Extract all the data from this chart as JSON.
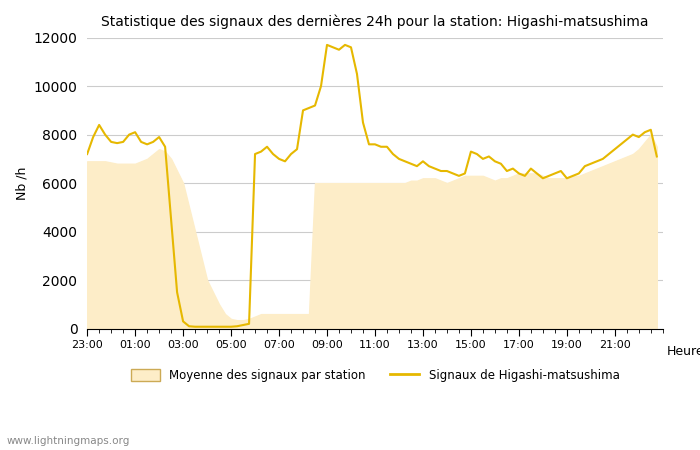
{
  "title": "Statistique des signaux des dernières 24h pour la station: Higashi-matsushima",
  "xlabel": "Heure",
  "ylabel": "Nb /h",
  "watermark": "www.lightningmaps.org",
  "legend_avg": "Moyenne des signaux par station",
  "legend_signal": "Signaux de Higashi-matsushima",
  "ylim": [
    0,
    12000
  ],
  "yticks": [
    0,
    2000,
    4000,
    6000,
    8000,
    10000,
    12000
  ],
  "fill_color": "#fdedc8",
  "line_color": "#e6b800",
  "grid_color": "#cccccc",
  "xtick_labels": [
    "23:00",
    "01:00",
    "03:00",
    "05:00",
    "07:00",
    "09:00",
    "11:00",
    "13:00",
    "15:00",
    "17:00",
    "19:00",
    "21:00"
  ],
  "time_hours": [
    23.0,
    23.25,
    23.5,
    23.75,
    24.0,
    24.25,
    24.5,
    24.75,
    25.0,
    25.25,
    25.5,
    25.75,
    26.0,
    26.25,
    26.5,
    26.75,
    27.0,
    27.25,
    27.5,
    27.75,
    28.0,
    28.25,
    28.5,
    28.75,
    29.0,
    29.25,
    29.5,
    29.75,
    30.0,
    30.25,
    30.5,
    30.75,
    31.0,
    31.25,
    31.5,
    31.75,
    32.0,
    32.25,
    32.5,
    32.75,
    33.0,
    33.25,
    33.5,
    33.75,
    34.0,
    34.25,
    34.5,
    34.75,
    35.0,
    35.25,
    35.5,
    35.75,
    36.0,
    36.25,
    36.5,
    36.75,
    37.0,
    37.25,
    37.5,
    37.75,
    38.0,
    38.25,
    38.5,
    38.75,
    39.0,
    39.25,
    39.5,
    39.75,
    40.0,
    40.25,
    40.5,
    40.75,
    41.0,
    41.25,
    41.5,
    41.75,
    42.0,
    42.25,
    42.5,
    42.75,
    43.0,
    43.25,
    43.5,
    43.75,
    44.0,
    44.25,
    44.5,
    44.75,
    45.0,
    45.25,
    45.5,
    45.75,
    46.0,
    46.25,
    46.5,
    46.75
  ],
  "signal_values": [
    7200,
    7900,
    8400,
    8000,
    7700,
    7650,
    7700,
    8000,
    8100,
    7700,
    7600,
    7700,
    7900,
    7500,
    4500,
    1500,
    300,
    100,
    80,
    80,
    80,
    80,
    80,
    80,
    80,
    100,
    150,
    200,
    7200,
    7300,
    7500,
    7200,
    7000,
    6900,
    7200,
    7400,
    9000,
    9100,
    9200,
    10000,
    11700,
    11600,
    11500,
    11700,
    11600,
    10500,
    8500,
    7600,
    7600,
    7500,
    7500,
    7200,
    7000,
    6900,
    6800,
    6700,
    6900,
    6700,
    6600,
    6500,
    6500,
    6400,
    6300,
    6400,
    7300,
    7200,
    7000,
    7100,
    6900,
    6800,
    6500,
    6600,
    6400,
    6300,
    6600,
    6400,
    6200,
    6300,
    6400,
    6500,
    6200,
    6300,
    6400,
    6700,
    6800,
    6900,
    7000,
    7200,
    7400,
    7600,
    7800,
    8000,
    7900,
    8100,
    8200,
    7100
  ],
  "avg_values": [
    6900,
    6900,
    6900,
    6900,
    6850,
    6800,
    6800,
    6800,
    6800,
    6900,
    7000,
    7200,
    7400,
    7300,
    7000,
    6500,
    6000,
    5000,
    4000,
    3000,
    2000,
    1500,
    1000,
    600,
    400,
    350,
    350,
    400,
    500,
    600,
    600,
    600,
    600,
    600,
    600,
    600,
    600,
    600,
    6000,
    6000,
    6000,
    6000,
    6000,
    6000,
    6000,
    6000,
    6000,
    6000,
    6000,
    6000,
    6000,
    6000,
    6000,
    6000,
    6100,
    6100,
    6200,
    6200,
    6200,
    6100,
    6000,
    6100,
    6200,
    6300,
    6300,
    6300,
    6300,
    6200,
    6100,
    6200,
    6200,
    6300,
    6400,
    6400,
    6400,
    6400,
    6300,
    6200,
    6200,
    6200,
    6200,
    6300,
    6300,
    6400,
    6500,
    6600,
    6700,
    6800,
    6900,
    7000,
    7100,
    7200,
    7400,
    7700,
    8000,
    7500
  ]
}
